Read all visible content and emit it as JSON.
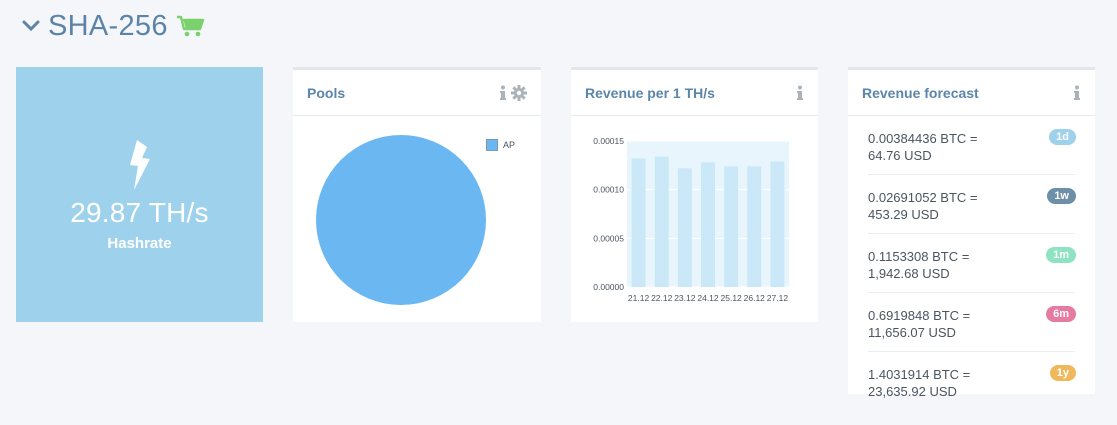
{
  "header": {
    "title": "SHA-256"
  },
  "hashrate": {
    "value": "29.87 TH/s",
    "label": "Hashrate"
  },
  "pools": {
    "title": "Pools",
    "chart_data": {
      "type": "pie",
      "slices": [
        {
          "label": "AP",
          "value": 100
        }
      ],
      "legend_placement": "top-right",
      "colors": [
        "#6ab7f2"
      ]
    }
  },
  "revenue": {
    "title": "Revenue per 1 TH/s",
    "chart_data": {
      "type": "bar",
      "categories": [
        "21.12",
        "22.12",
        "23.12",
        "24.12",
        "25.12",
        "26.12",
        "27.12"
      ],
      "values": [
        0.000132,
        0.000134,
        0.000122,
        0.000128,
        0.000124,
        0.000124,
        0.000129
      ],
      "yticks": [
        "0.00000",
        "0.00005",
        "0.00010",
        "0.00015"
      ],
      "ylim": [
        0,
        0.00015
      ],
      "grid": true,
      "colors": [
        "#cbe8f8",
        "#e8f5fc"
      ]
    }
  },
  "forecast": {
    "title": "Revenue forecast",
    "rows": [
      {
        "text": "0.00384436 BTC = 64.76 USD",
        "badge": "1d",
        "color": "#9ed2ec"
      },
      {
        "text": "0.02691052 BTC = 453.29 USD",
        "badge": "1w",
        "color": "#6e8fa8"
      },
      {
        "text": "0.1153308 BTC = 1,942.68 USD",
        "badge": "1m",
        "color": "#8fe3c2"
      },
      {
        "text": "0.6919848 BTC = 11,656.07 USD",
        "badge": "6m",
        "color": "#e57aa2"
      },
      {
        "text": "1.4031914 BTC = 23,635.92 USD",
        "badge": "1y",
        "color": "#f0b85c"
      }
    ]
  }
}
